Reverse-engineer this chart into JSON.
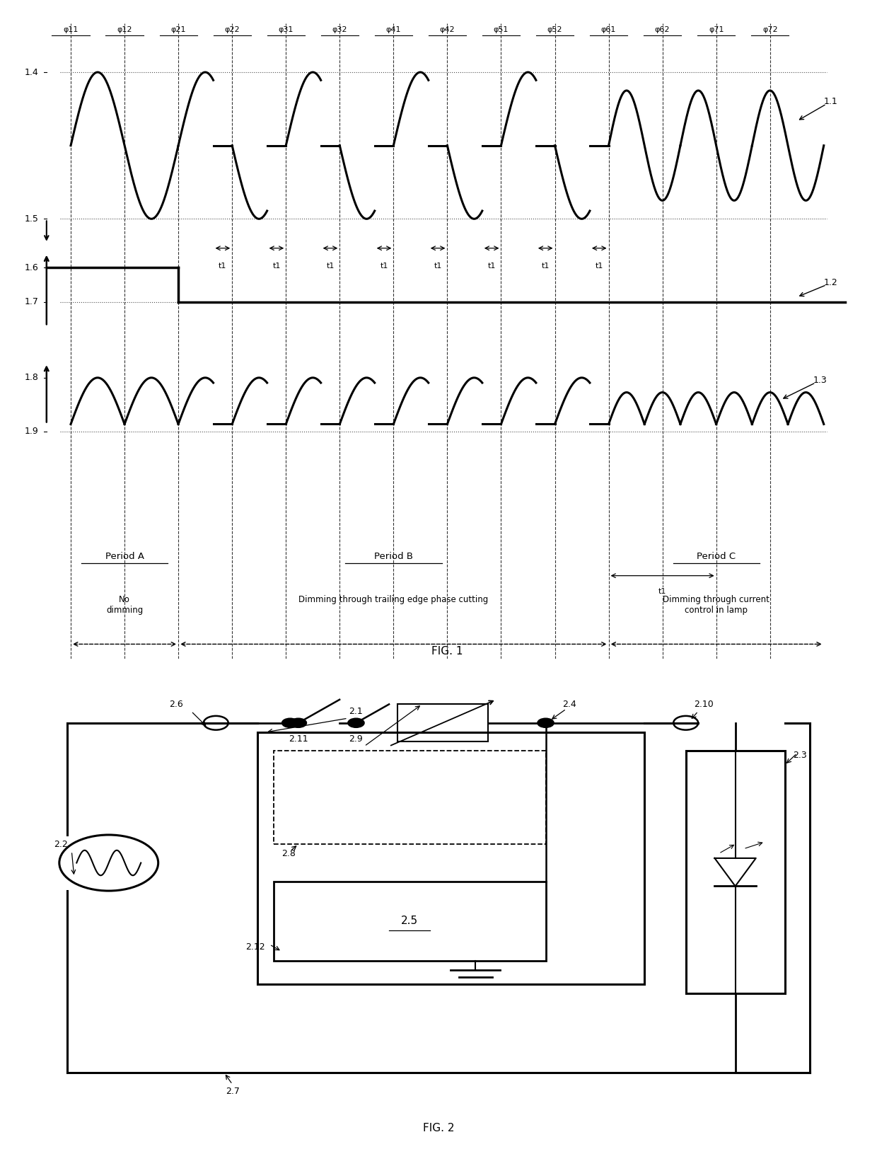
{
  "fig_width": 12.4,
  "fig_height": 16.48,
  "bg_color": "#ffffff",
  "phi_labels": [
    "φ11",
    "φ12",
    "φ21",
    "φ22",
    "φ31",
    "φ32",
    "φ41",
    "φ42",
    "φ51",
    "φ52",
    "φ61",
    "φ62",
    "φ71",
    "φ72"
  ],
  "fig1_label": "FIG. 1",
  "fig2_label": "FIG. 2"
}
